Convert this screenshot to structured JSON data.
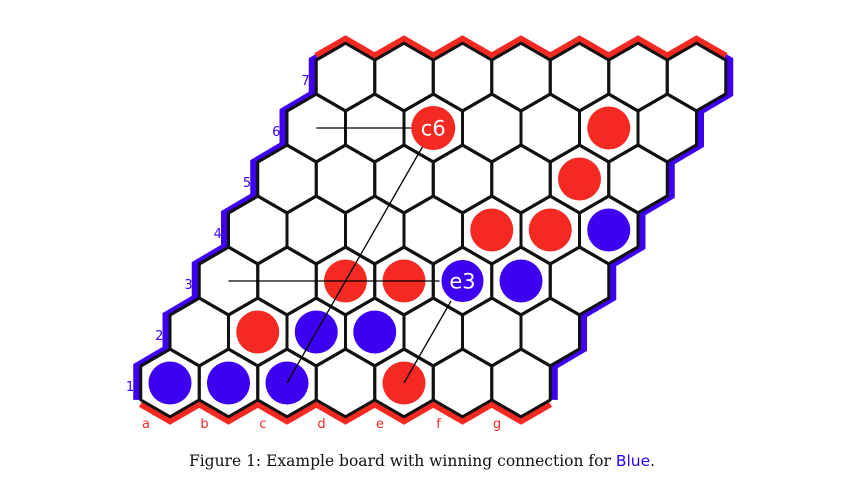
{
  "figure": {
    "caption_prefix": "Figure 1: Example board with winning connection for ",
    "caption_highlight": "Blue",
    "caption_suffix": "."
  },
  "board": {
    "size": 7,
    "column_labels": [
      "a",
      "b",
      "c",
      "d",
      "e",
      "f",
      "g"
    ],
    "row_labels": [
      "1",
      "2",
      "3",
      "4",
      "5",
      "6",
      "7"
    ],
    "colors": {
      "red": "#f42a22",
      "blue": "#3d00f0",
      "red_edge": "#f42a22",
      "blue_edge": "#3d00f0",
      "grid": "#111111",
      "row_label": "#3d00f0",
      "col_label": "#f42a22"
    },
    "stones": [
      {
        "cell": "a1",
        "color": "blue"
      },
      {
        "cell": "b1",
        "color": "blue"
      },
      {
        "cell": "c1",
        "color": "blue"
      },
      {
        "cell": "e1",
        "color": "red"
      },
      {
        "cell": "b2",
        "color": "red"
      },
      {
        "cell": "c2",
        "color": "blue"
      },
      {
        "cell": "d2",
        "color": "blue"
      },
      {
        "cell": "c3",
        "color": "red"
      },
      {
        "cell": "d3",
        "color": "red"
      },
      {
        "cell": "e3",
        "color": "blue",
        "label": "e3"
      },
      {
        "cell": "f3",
        "color": "blue"
      },
      {
        "cell": "e4",
        "color": "red"
      },
      {
        "cell": "f4",
        "color": "red"
      },
      {
        "cell": "g4",
        "color": "blue"
      },
      {
        "cell": "f5",
        "color": "red"
      },
      {
        "cell": "c6",
        "color": "red",
        "label": "c6"
      },
      {
        "cell": "f6",
        "color": "red"
      }
    ],
    "annotations": [
      {
        "from": "a6",
        "to": "c6"
      },
      {
        "from": "c1",
        "to": "c6"
      },
      {
        "from": "a3",
        "to": "e3"
      },
      {
        "from": "e1",
        "to": "e3"
      }
    ]
  }
}
